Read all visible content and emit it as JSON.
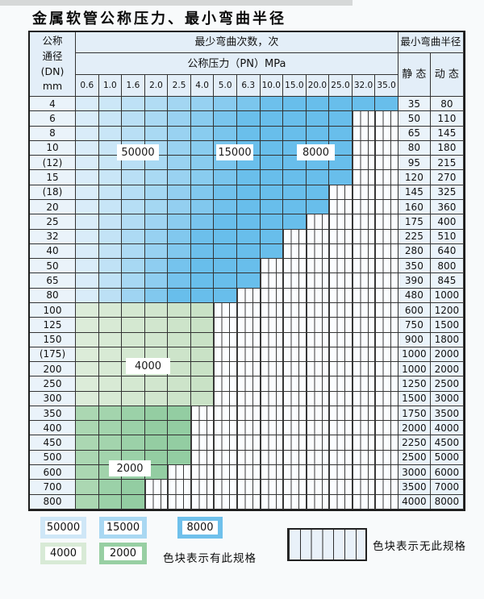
{
  "page_title": "金属软管公称压力、最小弯曲半径",
  "header": {
    "dn_lines": [
      "公称",
      "通径",
      "(DN)",
      "mm"
    ],
    "bend_times": "最少弯曲次数，次",
    "pn_title": "公称压力（PN）MPa",
    "min_radius": "最小弯曲半径",
    "static_label": "静 态",
    "dynamic_label": "动 态"
  },
  "chart_data": {
    "type": "heatmap",
    "title": "金属软管公称压力、最小弯曲半径",
    "xlabel": "公称压力（PN）MPa",
    "ylabel": "公称通径 (DN) mm",
    "columns_pn_mpa": [
      "0.6",
      "1.0",
      "1.6",
      "2.0",
      "2.5",
      "4.0",
      "5.0",
      "6.3",
      "10.0",
      "15.0",
      "20.0",
      "25.0",
      "32.0",
      "35.0"
    ],
    "legend_position": "bottom",
    "cycle_zones_note": "色块颜色对应最少弯曲次数：50000 / 15000 / 8000（蓝）、4000 / 2000（绿）",
    "rows": [
      {
        "dn": "4",
        "max_pn": "35.0",
        "palette": "blue",
        "static_radius": "35",
        "dynamic_radius": "80"
      },
      {
        "dn": "6",
        "max_pn": "25.0",
        "palette": "blue",
        "static_radius": "50",
        "dynamic_radius": "110"
      },
      {
        "dn": "8",
        "max_pn": "25.0",
        "palette": "blue",
        "static_radius": "65",
        "dynamic_radius": "145"
      },
      {
        "dn": "10",
        "max_pn": "25.0",
        "palette": "blue",
        "static_radius": "80",
        "dynamic_radius": "180"
      },
      {
        "dn": "(12)",
        "max_pn": "25.0",
        "palette": "blue",
        "static_radius": "95",
        "dynamic_radius": "215"
      },
      {
        "dn": "15",
        "max_pn": "25.0",
        "palette": "blue",
        "static_radius": "120",
        "dynamic_radius": "270"
      },
      {
        "dn": "(18)",
        "max_pn": "20.0",
        "palette": "blue",
        "static_radius": "145",
        "dynamic_radius": "325"
      },
      {
        "dn": "20",
        "max_pn": "20.0",
        "palette": "blue",
        "static_radius": "160",
        "dynamic_radius": "360"
      },
      {
        "dn": "25",
        "max_pn": "15.0",
        "palette": "blue",
        "static_radius": "175",
        "dynamic_radius": "400"
      },
      {
        "dn": "32",
        "max_pn": "10.0",
        "palette": "blue",
        "static_radius": "225",
        "dynamic_radius": "510"
      },
      {
        "dn": "40",
        "max_pn": "10.0",
        "palette": "blue",
        "static_radius": "280",
        "dynamic_radius": "640"
      },
      {
        "dn": "50",
        "max_pn": "6.3",
        "palette": "blue",
        "static_radius": "350",
        "dynamic_radius": "800"
      },
      {
        "dn": "65",
        "max_pn": "6.3",
        "palette": "blue",
        "static_radius": "390",
        "dynamic_radius": "845"
      },
      {
        "dn": "80",
        "max_pn": "5.0",
        "palette": "blue",
        "static_radius": "480",
        "dynamic_radius": "1000"
      },
      {
        "dn": "100",
        "max_pn": "4.0",
        "palette": "green_light",
        "static_radius": "600",
        "dynamic_radius": "1200"
      },
      {
        "dn": "125",
        "max_pn": "4.0",
        "palette": "green_light",
        "static_radius": "750",
        "dynamic_radius": "1500"
      },
      {
        "dn": "150",
        "max_pn": "4.0",
        "palette": "green_light",
        "static_radius": "900",
        "dynamic_radius": "1800"
      },
      {
        "dn": "(175)",
        "max_pn": "4.0",
        "palette": "green_light",
        "static_radius": "1000",
        "dynamic_radius": "2000"
      },
      {
        "dn": "200",
        "max_pn": "4.0",
        "palette": "green_light",
        "static_radius": "1000",
        "dynamic_radius": "2000"
      },
      {
        "dn": "250",
        "max_pn": "4.0",
        "palette": "green_light",
        "static_radius": "1250",
        "dynamic_radius": "2500"
      },
      {
        "dn": "300",
        "max_pn": "4.0",
        "palette": "green_light",
        "static_radius": "1500",
        "dynamic_radius": "3000"
      },
      {
        "dn": "350",
        "max_pn": "2.5",
        "palette": "green_dark",
        "static_radius": "1750",
        "dynamic_radius": "3500"
      },
      {
        "dn": "400",
        "max_pn": "2.5",
        "palette": "green_dark",
        "static_radius": "2000",
        "dynamic_radius": "4000"
      },
      {
        "dn": "450",
        "max_pn": "2.5",
        "palette": "green_dark",
        "static_radius": "2250",
        "dynamic_radius": "4500"
      },
      {
        "dn": "500",
        "max_pn": "2.5",
        "palette": "green_dark",
        "static_radius": "2500",
        "dynamic_radius": "5000"
      },
      {
        "dn": "600",
        "max_pn": "2.0",
        "palette": "green_dark",
        "static_radius": "3000",
        "dynamic_radius": "6000"
      },
      {
        "dn": "700",
        "max_pn": "1.6",
        "palette": "green_dark",
        "static_radius": "3500",
        "dynamic_radius": "7000"
      },
      {
        "dn": "800",
        "max_pn": "1.6",
        "palette": "green_dark",
        "static_radius": "4000",
        "dynamic_radius": "8000"
      }
    ]
  },
  "palette": {
    "blue_start": "#d9ecf9",
    "blue_end": "#68beeb",
    "green_light_start": "#dcecd9",
    "green_light_end": "#c9e2c6",
    "green_dark_start": "#abd7b2",
    "green_dark_end": "#93cda2",
    "grid_line": "#333333",
    "nospec_bg": "#fbfdff",
    "header_bg": "#e3eef8"
  },
  "legend": {
    "items": [
      {
        "label": "50000",
        "color": "#cfe7f7"
      },
      {
        "label": "15000",
        "color": "#a9d8f2"
      },
      {
        "label": "8000",
        "color": "#6fc0eb"
      },
      {
        "label": "4000",
        "color": "#d8ead6"
      },
      {
        "label": "2000",
        "color": "#98cfa3"
      }
    ],
    "has_spec_note": "色块表示有此规格",
    "no_spec_note": "色块表示无此规格"
  }
}
